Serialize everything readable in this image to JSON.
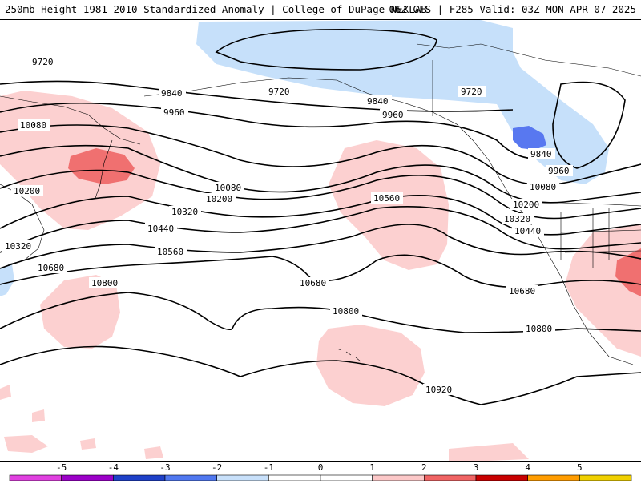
{
  "header": {
    "title": "250mb Height 1981-2010 Standardized Anomaly | College of DuPage NEXLAB",
    "valid": "06Z GFS | F285 Valid: 03Z MON APR 07 2025"
  },
  "contours": [
    {
      "value": "9720"
    },
    {
      "value": "9720"
    },
    {
      "value": "9720"
    },
    {
      "value": "9840"
    },
    {
      "value": "9840"
    },
    {
      "value": "9840"
    },
    {
      "value": "9960"
    },
    {
      "value": "9960"
    },
    {
      "value": "9960"
    },
    {
      "value": "10080"
    },
    {
      "value": "10080"
    },
    {
      "value": "10080"
    },
    {
      "value": "10200"
    },
    {
      "value": "10200"
    },
    {
      "value": "10200"
    },
    {
      "value": "10320"
    },
    {
      "value": "10320"
    },
    {
      "value": "10320"
    },
    {
      "value": "10440"
    },
    {
      "value": "10440"
    },
    {
      "value": "10560"
    },
    {
      "value": "10560"
    },
    {
      "value": "10680"
    },
    {
      "value": "10680"
    },
    {
      "value": "10680"
    },
    {
      "value": "10800"
    },
    {
      "value": "10800"
    },
    {
      "value": "10800"
    },
    {
      "value": "10920"
    }
  ],
  "legend": {
    "ticks": [
      "-5",
      "-4",
      "-3",
      "-2",
      "-1",
      "0",
      "1",
      "2",
      "3",
      "4",
      "5"
    ],
    "colors": [
      "#e040e0",
      "#9b00c8",
      "#1e40c8",
      "#5078f0",
      "#c8e0fa",
      "#ffffff",
      "#ffffff",
      "#fcc8c8",
      "#f06464",
      "#c80000",
      "#ff9c00",
      "#f0d000"
    ]
  },
  "colors": {
    "neg1": "#c6e0fa",
    "neg2": "#5878f0",
    "pos1": "#fcd0d0",
    "pos2": "#f07070",
    "land": "#ffffff"
  }
}
